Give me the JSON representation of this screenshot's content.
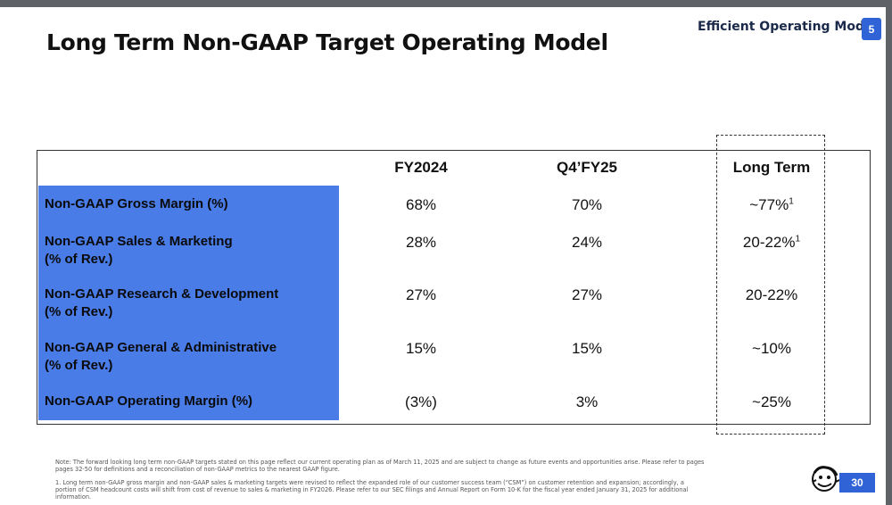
{
  "title": "Long Term Non-GAAP Target Operating Model",
  "section": {
    "label": "Efficient Operating Model",
    "number": "5"
  },
  "table": {
    "headers": [
      "FY2024",
      "Q4’FY25",
      "Long Term"
    ],
    "rows": [
      {
        "label": "Non-GAAP Gross Margin (%)",
        "fy2024": "68%",
        "q4fy25": "70%",
        "long_term": "~77%",
        "long_term_sup": "1"
      },
      {
        "label": "Non-GAAP Sales & Marketing\n(% of Rev.)",
        "fy2024": "28%",
        "q4fy25": "24%",
        "long_term": "20-22%",
        "long_term_sup": "1"
      },
      {
        "label": "Non-GAAP Research & Development\n(% of Rev.)",
        "fy2024": "27%",
        "q4fy25": "27%",
        "long_term": "20-22%",
        "long_term_sup": ""
      },
      {
        "label": "Non-GAAP General & Administrative\n(% of Rev.)",
        "fy2024": "15%",
        "q4fy25": "15%",
        "long_term": "~10%",
        "long_term_sup": ""
      },
      {
        "label": "Non-GAAP Operating Margin (%)",
        "fy2024": "(3%)",
        "q4fy25": "3%",
        "long_term": "~25%",
        "long_term_sup": ""
      }
    ]
  },
  "footnotes": {
    "note": "Note: The forward looking long term non-GAAP targets stated on this page reflect our current operating plan as of March 11, 2025 and are subject to change as future events and opportunities arise. Please refer to pages pages 32-50 for definitions and a reconciliation of non-GAAP metrics to the nearest GAAP figure.",
    "one": "1. Long term non-GAAP gross margin and non-GAAP sales & marketing targets were revised to reflect the expanded role of our customer success team (“CSM”) on customer retention and expansion; accordingly, a portion of CSM headcount costs will shift from cost of revenue to sales & marketing in FY2026. Please refer to our SEC filings and Annual Report on Form 10-K for the fiscal year ended January 31, 2025 for additional information."
  },
  "page_number": "30",
  "colors": {
    "accent": "#4a7ce8",
    "badge": "#2f63d6"
  }
}
